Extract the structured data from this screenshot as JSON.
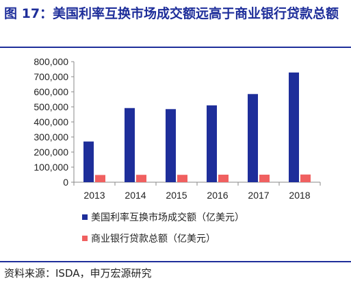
{
  "figure": {
    "title": "图 17：美国利率互换市场成交额远高于商业银行贷款总额",
    "source": "资料来源：ISDA，申万宏源研究"
  },
  "colors": {
    "primary": "#1e2e9a",
    "series1": "#1e2e9a",
    "series2": "#f06060"
  },
  "chart_data": {
    "type": "bar",
    "title": "",
    "xlabel": "",
    "ylabel": "",
    "categories": [
      "2013",
      "2014",
      "2015",
      "2016",
      "2017",
      "2018"
    ],
    "series": [
      {
        "name": "美国利率互换市场成交额（亿美元）",
        "values": [
          270000,
          492000,
          485000,
          510000,
          585000,
          728000
        ]
      },
      {
        "name": "商业银行贷款总额（亿美元）",
        "values": [
          48000,
          49000,
          49000,
          50000,
          50000,
          51000
        ]
      }
    ],
    "ylim": [
      0,
      800000
    ],
    "yticks": [
      0,
      100000,
      200000,
      300000,
      400000,
      500000,
      600000,
      700000,
      800000
    ],
    "ytick_labels": [
      "0",
      "100,000",
      "200,000",
      "300,000",
      "400,000",
      "500,000",
      "600,000",
      "700,000",
      "800,000"
    ],
    "grid": false,
    "legend_position": "bottom"
  }
}
